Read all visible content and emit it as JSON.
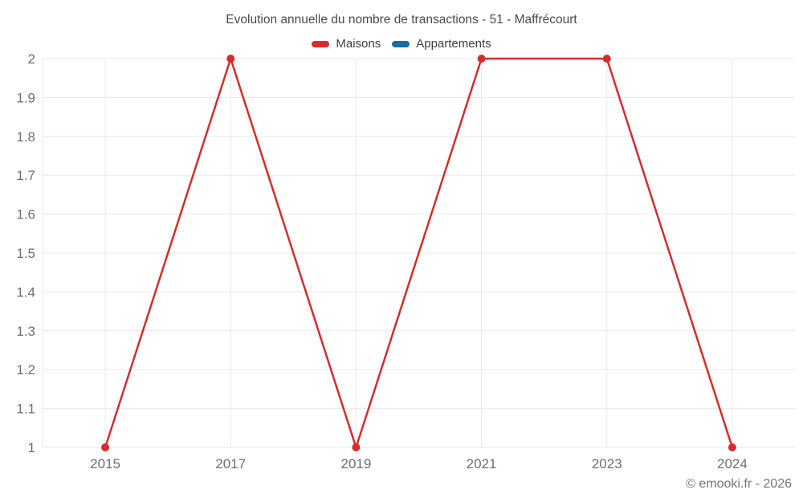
{
  "title": "Evolution annuelle du nombre de transactions - 51 - Maffrécourt",
  "footer": "© emooki.fr - 2026",
  "legend": [
    {
      "label": "Maisons",
      "color": "#d32d2d"
    },
    {
      "label": "Appartements",
      "color": "#1a6e9f"
    }
  ],
  "colors": {
    "maisons_red": "#d32d2d",
    "appartements_blue": "#1a6e9f",
    "grid": "#e8e8e8",
    "axis_line": "#e0e0e0",
    "tick_label": "#6e6e6e",
    "title_text": "#4a4a4a",
    "legend_text": "#3d3d3d",
    "footer_text": "#757575",
    "background": "#ffffff"
  },
  "chart_data": {
    "type": "line",
    "title": "Evolution annuelle du nombre de transactions - 51 - Maffrécourt",
    "categories": [
      "2015",
      "2017",
      "2019",
      "2021",
      "2023",
      "2024"
    ],
    "series": [
      {
        "name": "Maisons",
        "color": "#d32d2d",
        "values": [
          1,
          2,
          1,
          2,
          2,
          1
        ]
      },
      {
        "name": "Appartements",
        "color": "#1a6e9f",
        "values": []
      }
    ],
    "xlabel": "",
    "ylabel": "",
    "ylim": [
      1,
      2
    ],
    "ytick_step": 0.1,
    "ytick_labels": [
      "1",
      "1.1",
      "1.2",
      "1.3",
      "1.4",
      "1.5",
      "1.6",
      "1.7",
      "1.8",
      "1.9",
      "2"
    ],
    "grid": true,
    "legend_position": "top",
    "point_markers": true
  }
}
